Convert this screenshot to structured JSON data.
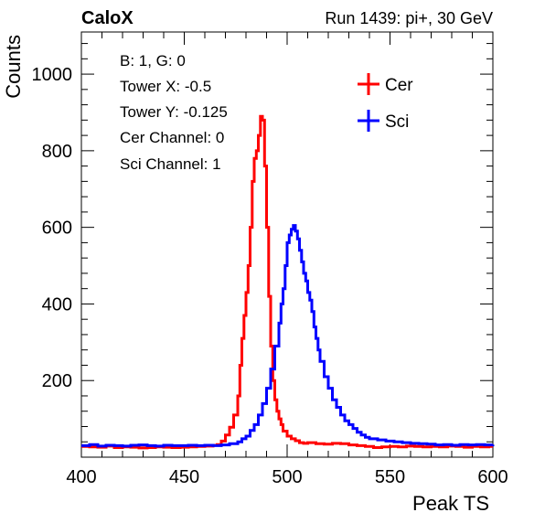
{
  "header": {
    "brand": "CaloX",
    "run_info": "Run 1439: pi+, 30 GeV"
  },
  "info_lines": [
    "B: 1, G: 0",
    "Tower X: -0.5",
    "Tower Y: -0.125",
    "Cer Channel: 0",
    "Sci Channel: 1"
  ],
  "colors": {
    "cer": "#ff0000",
    "sci": "#0000ff"
  },
  "chart_data": {
    "type": "line",
    "style": "step-histogram",
    "xlabel": "Peak TS",
    "ylabel": "Counts",
    "xlim": [
      400,
      600
    ],
    "ylim": [
      0,
      1110
    ],
    "xticks": [
      400,
      450,
      500,
      550,
      600
    ],
    "yticks": [
      200,
      400,
      600,
      800,
      1000
    ],
    "legend_position": "top-right",
    "series": [
      {
        "name": "Cer",
        "color": "#ff0000",
        "points": [
          [
            400,
            28
          ],
          [
            404,
            27
          ],
          [
            408,
            26
          ],
          [
            412,
            29
          ],
          [
            416,
            25
          ],
          [
            420,
            27
          ],
          [
            424,
            26
          ],
          [
            428,
            24
          ],
          [
            432,
            25
          ],
          [
            436,
            27
          ],
          [
            440,
            26
          ],
          [
            444,
            25
          ],
          [
            448,
            26
          ],
          [
            452,
            27
          ],
          [
            456,
            28
          ],
          [
            460,
            29
          ],
          [
            464,
            31
          ],
          [
            466,
            33
          ],
          [
            468,
            42
          ],
          [
            470,
            58
          ],
          [
            472,
            78
          ],
          [
            474,
            110
          ],
          [
            476,
            160
          ],
          [
            477,
            240
          ],
          [
            478,
            310
          ],
          [
            479,
            370
          ],
          [
            480,
            430
          ],
          [
            481,
            500
          ],
          [
            482,
            600
          ],
          [
            483,
            720
          ],
          [
            484,
            780
          ],
          [
            485,
            800
          ],
          [
            486,
            840
          ],
          [
            487,
            890
          ],
          [
            488,
            880
          ],
          [
            489,
            760
          ],
          [
            490,
            600
          ],
          [
            491,
            420
          ],
          [
            492,
            290
          ],
          [
            493,
            200
          ],
          [
            494,
            150
          ],
          [
            495,
            120
          ],
          [
            496,
            100
          ],
          [
            497,
            85
          ],
          [
            498,
            68
          ],
          [
            500,
            55
          ],
          [
            502,
            48
          ],
          [
            504,
            43
          ],
          [
            506,
            38
          ],
          [
            508,
            36
          ],
          [
            510,
            38
          ],
          [
            514,
            35
          ],
          [
            518,
            34
          ],
          [
            522,
            36
          ],
          [
            526,
            35
          ],
          [
            530,
            32
          ],
          [
            534,
            30
          ],
          [
            538,
            28
          ],
          [
            542,
            25
          ],
          [
            546,
            27
          ],
          [
            550,
            28
          ],
          [
            554,
            27
          ],
          [
            558,
            29
          ],
          [
            562,
            28
          ],
          [
            566,
            27
          ],
          [
            570,
            28
          ],
          [
            574,
            27
          ],
          [
            578,
            29
          ],
          [
            582,
            28
          ],
          [
            586,
            26
          ],
          [
            590,
            28
          ],
          [
            594,
            27
          ],
          [
            598,
            28
          ],
          [
            600,
            28
          ]
        ]
      },
      {
        "name": "Sci",
        "color": "#0000ff",
        "points": [
          [
            400,
            30
          ],
          [
            404,
            33
          ],
          [
            408,
            29
          ],
          [
            412,
            31
          ],
          [
            416,
            30
          ],
          [
            420,
            29
          ],
          [
            424,
            31
          ],
          [
            428,
            32
          ],
          [
            432,
            30
          ],
          [
            436,
            29
          ],
          [
            440,
            31
          ],
          [
            444,
            30
          ],
          [
            448,
            30
          ],
          [
            452,
            31
          ],
          [
            456,
            30
          ],
          [
            460,
            31
          ],
          [
            464,
            30
          ],
          [
            468,
            32
          ],
          [
            472,
            35
          ],
          [
            476,
            40
          ],
          [
            478,
            48
          ],
          [
            480,
            55
          ],
          [
            482,
            70
          ],
          [
            484,
            85
          ],
          [
            486,
            110
          ],
          [
            488,
            140
          ],
          [
            490,
            180
          ],
          [
            492,
            230
          ],
          [
            494,
            290
          ],
          [
            496,
            350
          ],
          [
            497,
            400
          ],
          [
            498,
            440
          ],
          [
            499,
            500
          ],
          [
            500,
            560
          ],
          [
            501,
            580
          ],
          [
            502,
            595
          ],
          [
            503,
            605
          ],
          [
            504,
            590
          ],
          [
            505,
            570
          ],
          [
            506,
            540
          ],
          [
            507,
            510
          ],
          [
            508,
            480
          ],
          [
            509,
            460
          ],
          [
            510,
            430
          ],
          [
            511,
            410
          ],
          [
            512,
            380
          ],
          [
            513,
            340
          ],
          [
            514,
            310
          ],
          [
            515,
            280
          ],
          [
            516,
            250
          ],
          [
            518,
            210
          ],
          [
            520,
            180
          ],
          [
            522,
            150
          ],
          [
            524,
            130
          ],
          [
            526,
            110
          ],
          [
            528,
            95
          ],
          [
            530,
            85
          ],
          [
            532,
            75
          ],
          [
            534,
            65
          ],
          [
            536,
            58
          ],
          [
            538,
            52
          ],
          [
            540,
            48
          ],
          [
            544,
            45
          ],
          [
            548,
            42
          ],
          [
            552,
            40
          ],
          [
            556,
            38
          ],
          [
            560,
            36
          ],
          [
            564,
            35
          ],
          [
            568,
            34
          ],
          [
            572,
            32
          ],
          [
            576,
            33
          ],
          [
            580,
            31
          ],
          [
            584,
            33
          ],
          [
            588,
            32
          ],
          [
            592,
            33
          ],
          [
            596,
            32
          ],
          [
            600,
            33
          ]
        ]
      }
    ]
  }
}
